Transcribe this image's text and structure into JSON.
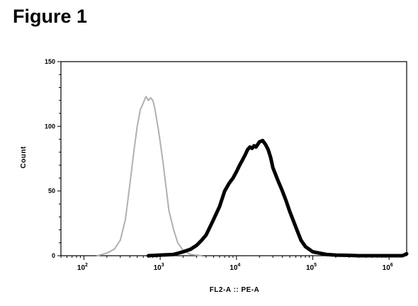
{
  "figure": {
    "title": "Figure 1"
  },
  "chart_data": {
    "type": "line",
    "xlabel": "FL2-A :: PE-A",
    "ylabel": "Count",
    "x_scale": "log",
    "xlim": [
      50,
      1700000
    ],
    "ylim": [
      0,
      150
    ],
    "x_ticks": [
      {
        "value": 100,
        "base": "10",
        "exp": "2"
      },
      {
        "value": 1000,
        "base": "10",
        "exp": "3"
      },
      {
        "value": 10000,
        "base": "10",
        "exp": "4"
      },
      {
        "value": 100000,
        "base": "10",
        "exp": "5"
      },
      {
        "value": 1000000,
        "base": "10",
        "exp": "6"
      }
    ],
    "y_ticks": [
      "0",
      "50",
      "100",
      "150"
    ],
    "grid": false,
    "legend": "none",
    "series": [
      {
        "color": "#b0b0b0",
        "style": "thin",
        "x": [
          150,
          200,
          250,
          300,
          350,
          400,
          450,
          500,
          550,
          600,
          650,
          700,
          750,
          800,
          850,
          900,
          950,
          1000,
          1100,
          1200,
          1300,
          1500,
          1700,
          2000,
          2500,
          3000,
          3500
        ],
        "y": [
          0,
          2,
          5,
          12,
          28,
          55,
          80,
          100,
          113,
          118,
          123,
          120,
          122,
          120,
          114,
          105,
          97,
          88,
          70,
          52,
          35,
          20,
          10,
          4,
          1,
          0.5,
          0
        ]
      },
      {
        "color": "#000000",
        "style": "thick",
        "x": [
          700,
          1000,
          1500,
          2000,
          2500,
          3000,
          3500,
          4000,
          5000,
          6000,
          7000,
          8000,
          9000,
          10000,
          11000,
          12000,
          13000,
          14000,
          15000,
          16000,
          17000,
          18000,
          20000,
          22000,
          24000,
          26000,
          28000,
          30000,
          35000,
          40000,
          45000,
          50000,
          60000,
          70000,
          80000,
          100000,
          150000,
          200000,
          300000,
          400000,
          600000,
          1000000,
          1500000,
          1700000
        ],
        "y": [
          0,
          0.5,
          1,
          3,
          5,
          8,
          12,
          16,
          28,
          38,
          50,
          56,
          60,
          65,
          70,
          74,
          78,
          82,
          84,
          83,
          85,
          84,
          88,
          89,
          86,
          82,
          76,
          68,
          58,
          50,
          42,
          34,
          22,
          12,
          7,
          3,
          1,
          0.5,
          0.3,
          0,
          0,
          0,
          0,
          1.5
        ]
      }
    ]
  }
}
